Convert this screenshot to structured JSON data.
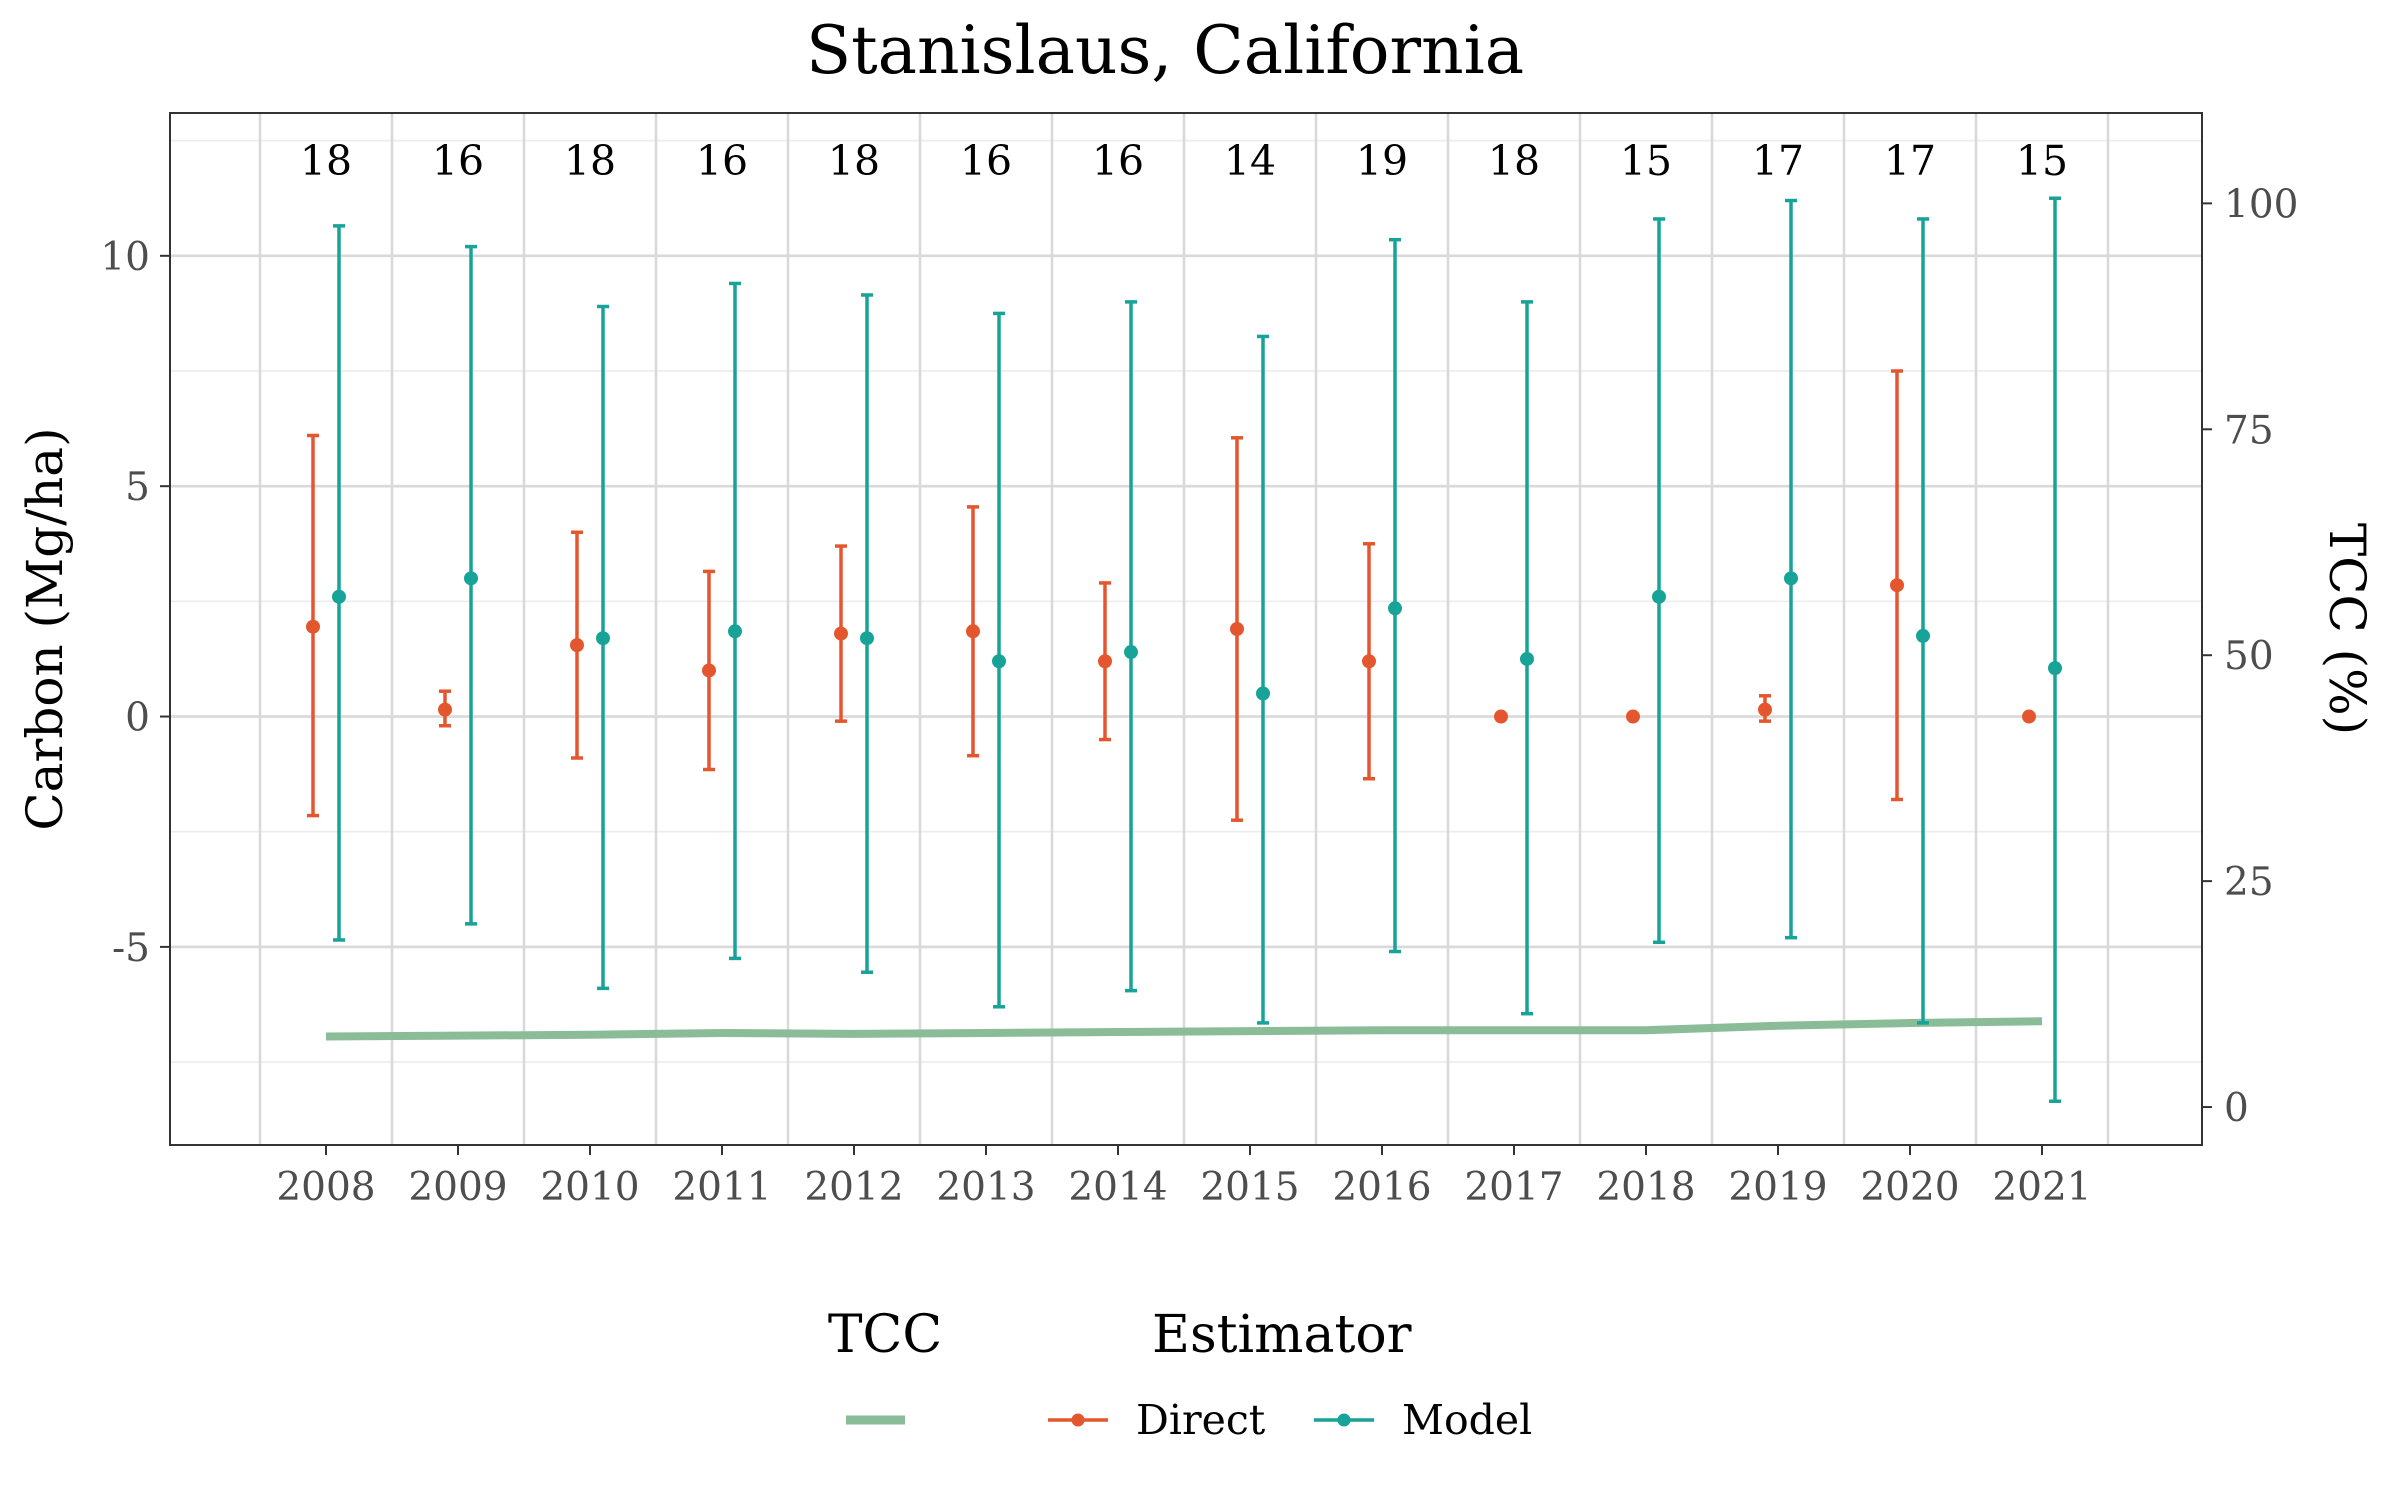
{
  "chart_data": {
    "type": "errorbar",
    "title": "Stanislaus, California",
    "ylabel": "Carbon (Mg/ha)",
    "y2label": "TCC (%)",
    "xlabel": "",
    "categories": [
      "2008",
      "2009",
      "2010",
      "2011",
      "2012",
      "2013",
      "2014",
      "2015",
      "2016",
      "2017",
      "2018",
      "2019",
      "2020",
      "2021"
    ],
    "counts": [
      "18",
      "16",
      "18",
      "16",
      "18",
      "16",
      "16",
      "14",
      "19",
      "18",
      "15",
      "17",
      "17",
      "15"
    ],
    "ylim": [
      -9.3,
      13.1
    ],
    "y_ticks": [
      -5,
      0,
      5,
      10
    ],
    "y_tick_labels": [
      "-5",
      "0",
      "5",
      "10"
    ],
    "y2lim": [
      -4.2,
      110.0
    ],
    "y2_ticks": [
      0,
      25,
      50,
      75,
      100
    ],
    "y2_tick_labels": [
      "0",
      "25",
      "50",
      "75",
      "100"
    ],
    "grid": true,
    "legend_position": "bottom",
    "series": [
      {
        "name": "Direct",
        "color": "#E4572E",
        "estimate": [
          1.95,
          0.15,
          1.55,
          1.0,
          1.8,
          1.85,
          1.2,
          1.9,
          1.2,
          0.0,
          0.0,
          0.15,
          2.85,
          0.0
        ],
        "lower": [
          -2.15,
          -0.2,
          -0.9,
          -1.15,
          -0.1,
          -0.85,
          -0.5,
          -2.25,
          -1.35,
          null,
          null,
          -0.1,
          -1.8,
          null
        ],
        "upper": [
          6.1,
          0.55,
          4.0,
          3.15,
          3.7,
          4.55,
          2.9,
          6.05,
          3.75,
          null,
          null,
          0.45,
          7.5,
          null
        ]
      },
      {
        "name": "Model",
        "color": "#17A398",
        "estimate": [
          2.6,
          3.0,
          1.7,
          1.85,
          1.7,
          1.2,
          1.4,
          0.5,
          2.35,
          1.25,
          2.6,
          3.0,
          1.75,
          1.05
        ],
        "lower": [
          -4.85,
          -4.5,
          -5.9,
          -5.25,
          -5.55,
          -6.3,
          -5.95,
          -6.65,
          -5.1,
          -6.45,
          -4.9,
          -4.8,
          -6.65,
          -8.35
        ],
        "upper": [
          10.65,
          10.2,
          8.9,
          9.4,
          9.15,
          8.75,
          9.0,
          8.25,
          10.35,
          9.0,
          10.8,
          11.2,
          10.8,
          11.25
        ]
      }
    ],
    "tcc_series": {
      "name": "TCC",
      "color": "#8BBC98",
      "values": [
        7.8,
        7.9,
        8.0,
        8.2,
        8.1,
        8.2,
        8.3,
        8.4,
        8.5,
        8.5,
        8.5,
        9.0,
        9.3,
        9.5
      ]
    }
  },
  "legend": {
    "tcc_title": "TCC",
    "estimator_title": "Estimator",
    "direct_label": "Direct",
    "model_label": "Model"
  }
}
